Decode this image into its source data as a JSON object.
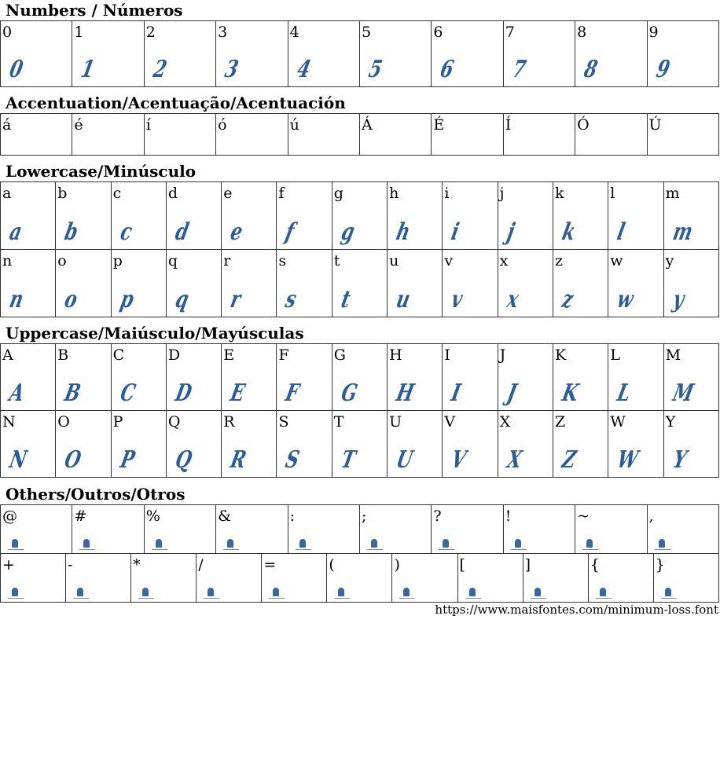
{
  "sections": {
    "numbers": {
      "title": "Numbers / Números",
      "rows": [
        [
          "0",
          "1",
          "2",
          "3",
          "4",
          "5",
          "6",
          "7",
          "8",
          "9"
        ]
      ]
    },
    "accents": {
      "title": "Accentuation/Acentuação/Acentuación",
      "rows": [
        [
          "á",
          "é",
          "í",
          "ó",
          "ú",
          "Á",
          "É",
          "Í",
          "Ó",
          "Ú"
        ]
      ]
    },
    "lowercase": {
      "title": "Lowercase/Minúsculo",
      "rows": [
        [
          "a",
          "b",
          "c",
          "d",
          "e",
          "f",
          "g",
          "h",
          "i",
          "j",
          "k",
          "l",
          "m"
        ],
        [
          "n",
          "o",
          "p",
          "q",
          "r",
          "s",
          "t",
          "u",
          "v",
          "x",
          "z",
          "w",
          "y"
        ]
      ]
    },
    "uppercase": {
      "title": "Uppercase/Maiúsculo/Mayúsculas",
      "rows": [
        [
          "A",
          "B",
          "C",
          "D",
          "E",
          "F",
          "G",
          "H",
          "I",
          "J",
          "K",
          "L",
          "M"
        ],
        [
          "N",
          "O",
          "P",
          "Q",
          "R",
          "S",
          "T",
          "U",
          "V",
          "X",
          "Z",
          "W",
          "Y"
        ]
      ]
    },
    "others": {
      "title": "Others/Outros/Otros",
      "rows": [
        [
          "@",
          "#",
          "%",
          "&",
          ":",
          ";",
          "?",
          "!",
          "~",
          ","
        ],
        [
          "+",
          "-",
          "*",
          "/",
          "=",
          "(",
          ")",
          "[",
          "]",
          "{",
          "}"
        ]
      ]
    }
  },
  "footer": {
    "url": "https://www.maisfontes.com/minimum-loss.font"
  },
  "colors": {
    "glyph": "#2b5c9b"
  }
}
